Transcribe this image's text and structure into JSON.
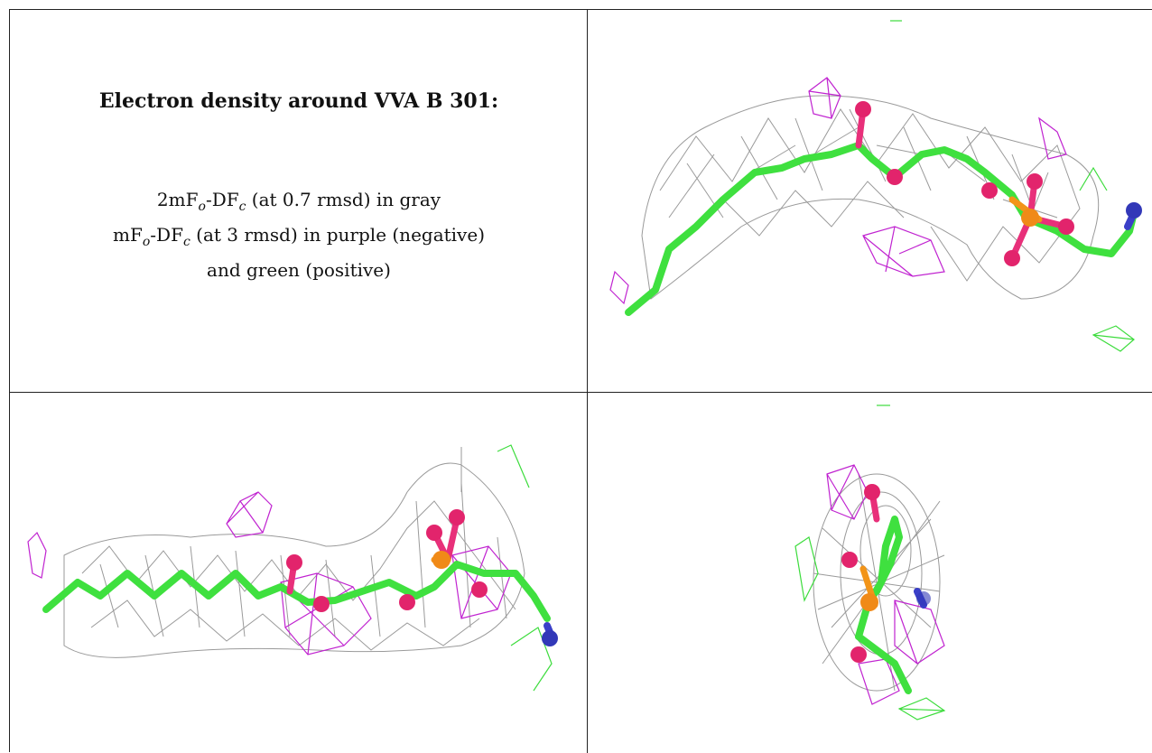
{
  "caption": {
    "title": "Electron density around VVA B 301:",
    "line1_a": "2mF",
    "line1_sub1": "o",
    "line1_b": "-DF",
    "line1_sub2": "c",
    "line1_c": " (at 0.7 rmsd) in gray",
    "line2_a": "mF",
    "line2_sub1": "o",
    "line2_b": "-DF",
    "line2_sub2": "c",
    "line2_c": " (at 3 rmsd) in purple (negative)",
    "line3": "and green (positive)"
  },
  "colors": {
    "density_2fofc": "#9a9a9a",
    "difference_negative": "#c023d0",
    "difference_positive": "#3cdc3c",
    "carbon": "#3fe03f",
    "oxygen": "#e2246c",
    "phosphorus": "#f08a18",
    "nitrogen": "#3238b8"
  }
}
